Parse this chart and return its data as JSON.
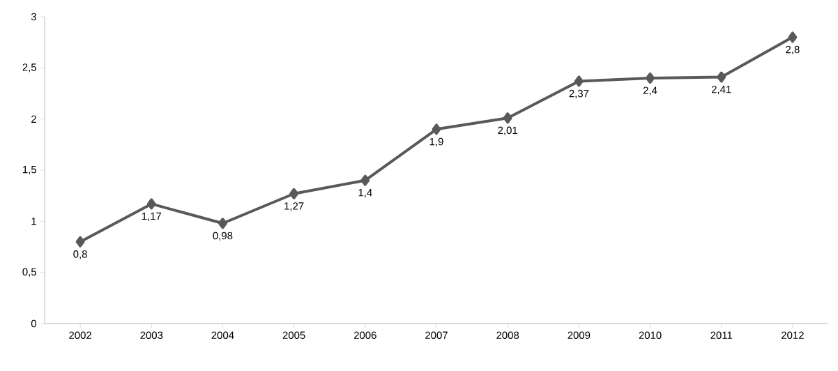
{
  "chart_data": {
    "type": "line",
    "categories": [
      "2002",
      "2003",
      "2004",
      "2005",
      "2006",
      "2007",
      "2008",
      "2009",
      "2010",
      "2011",
      "2012"
    ],
    "values": [
      0.8,
      1.17,
      0.98,
      1.27,
      1.4,
      1.9,
      2.01,
      2.37,
      2.4,
      2.41,
      2.8
    ],
    "value_labels": [
      "0,8",
      "1,17",
      "0,98",
      "1,27",
      "1,4",
      "1,9",
      "2,01",
      "2,37",
      "2,4",
      "2,41",
      "2,8"
    ],
    "color": "#595959",
    "marker": "diamond",
    "line_style": "solid",
    "grid": false,
    "ylim": [
      0,
      3
    ],
    "yticks": [
      0,
      {
        "value": 0.5,
        "label": "0,5"
      },
      1,
      {
        "value": 1.5,
        "label": "1,5"
      },
      2,
      {
        "value": 2.5,
        "label": "2,5"
      },
      3
    ]
  }
}
